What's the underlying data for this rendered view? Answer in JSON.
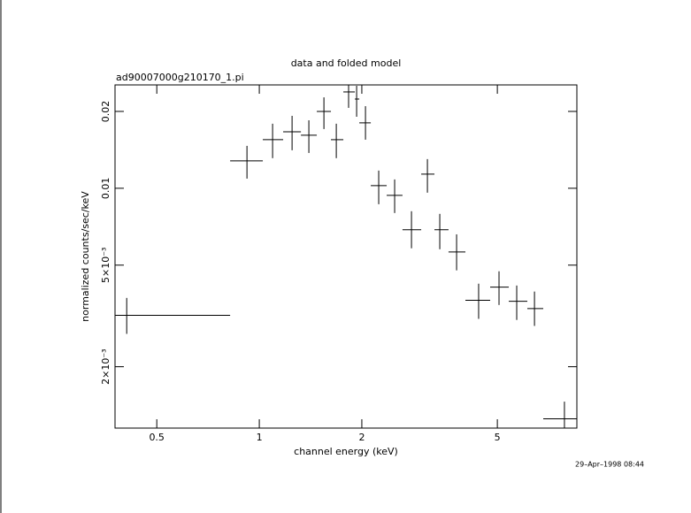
{
  "chart_data": {
    "type": "errorbar",
    "title": "data and folded model",
    "subtitle": "ad90007000g210170_1.pi",
    "xlabel": "channel energy (keV)",
    "ylabel": "normalized counts/sec/keV",
    "annotation": "29–Apr–1998 08:44",
    "xlog": true,
    "ylog": true,
    "color": "#000000",
    "xlim": [
      0.377,
      8.56
    ],
    "ylim": [
      0.00115,
      0.0254
    ],
    "xticks": [
      0.5,
      1,
      2,
      5
    ],
    "yticks": [
      {
        "value": 0.002,
        "label": "2×10⁻³"
      },
      {
        "value": 0.005,
        "label": "5×10⁻³"
      },
      0.01,
      0.02
    ],
    "x": [
      0.408,
      0.92,
      1.094,
      1.248,
      1.398,
      1.548,
      1.683,
      1.829,
      1.931,
      2.05,
      2.242,
      2.497,
      2.798,
      3.116,
      3.388,
      3.796,
      4.406,
      5.057,
      5.7,
      6.427,
      7.87
    ],
    "x_lo": [
      0.377,
      0.821,
      1.024,
      1.175,
      1.325,
      1.475,
      1.623,
      1.765,
      1.908,
      1.966,
      2.125,
      2.366,
      2.633,
      2.988,
      3.268,
      3.594,
      4.029,
      4.763,
      5.402,
      6.124,
      6.82
    ],
    "x_hi": [
      0.821,
      1.024,
      1.175,
      1.325,
      1.475,
      1.623,
      1.765,
      1.908,
      1.966,
      2.125,
      2.366,
      2.633,
      2.988,
      3.268,
      3.594,
      4.029,
      4.763,
      5.402,
      6.124,
      6.82,
      8.56
    ],
    "y": [
      0.00318,
      0.0128,
      0.0155,
      0.01665,
      0.01613,
      0.02,
      0.0155,
      0.02384,
      0.02236,
      0.01804,
      0.01024,
      0.00938,
      0.00688,
      0.01136,
      0.00688,
      0.00563,
      0.00364,
      0.0041,
      0.00361,
      0.00338,
      0.00125
    ],
    "y_lo": [
      0.00269,
      0.01091,
      0.01312,
      0.01409,
      0.01375,
      0.01706,
      0.01312,
      0.02065,
      0.01906,
      0.0155,
      0.00866,
      0.008,
      0.00582,
      0.00961,
      0.00577,
      0.00477,
      0.00308,
      0.00349,
      0.00305,
      0.00289,
      0.00115
    ],
    "y_hi": [
      0.00372,
      0.01466,
      0.0179,
      0.01922,
      0.01846,
      0.0227,
      0.0179,
      0.0254,
      0.0252,
      0.02097,
      0.01173,
      0.01083,
      0.00813,
      0.01301,
      0.00794,
      0.0066,
      0.00423,
      0.00473,
      0.00416,
      0.00394,
      0.00146
    ]
  }
}
